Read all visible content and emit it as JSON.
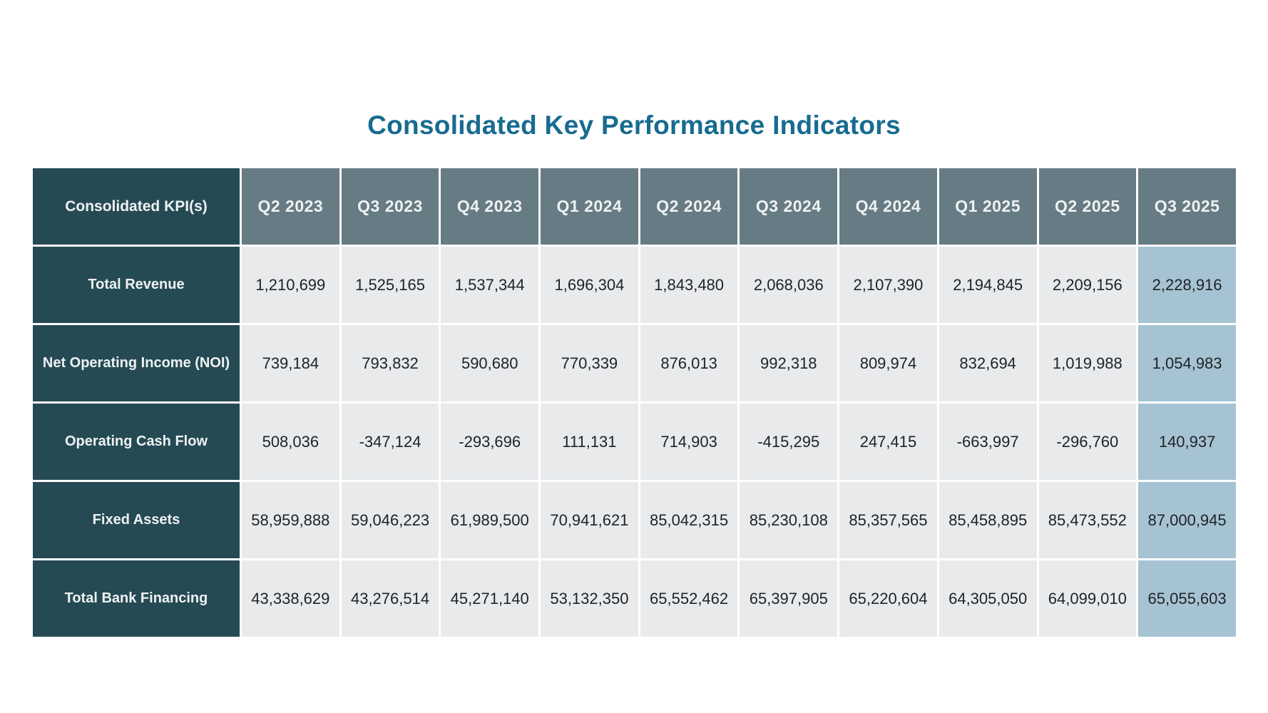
{
  "title": "Consolidated Key Performance Indicators",
  "colors": {
    "title": "#176b90",
    "header_dark": "#264a54",
    "header_slate": "#667b83",
    "cell_bg": "#e8eaec",
    "highlight_bg": "#a6c3d3",
    "header_text": "#eef2f3",
    "cell_text": "#202427",
    "page_bg": "#ffffff"
  },
  "chart_data": {
    "type": "table",
    "title": "Consolidated Key Performance Indicators",
    "corner_label": "Consolidated KPI(s)",
    "columns": [
      "Q2 2023",
      "Q3 2023",
      "Q4 2023",
      "Q1 2024",
      "Q2 2024",
      "Q3 2024",
      "Q4 2024",
      "Q1 2025",
      "Q2 2025",
      "Q3 2025"
    ],
    "highlighted_column": "Q3 2025",
    "rows": [
      {
        "label": "Total Revenue",
        "values": [
          "1,210,699",
          "1,525,165",
          "1,537,344",
          "1,696,304",
          "1,843,480",
          "2,068,036",
          "2,107,390",
          "2,194,845",
          "2,209,156",
          "2,228,916"
        ]
      },
      {
        "label": "Net Operating Income (NOI)",
        "values": [
          "739,184",
          "793,832",
          "590,680",
          "770,339",
          "876,013",
          "992,318",
          "809,974",
          "832,694",
          "1,019,988",
          "1,054,983"
        ]
      },
      {
        "label": "Operating Cash Flow",
        "values": [
          "508,036",
          "-347,124",
          "-293,696",
          "111,131",
          "714,903",
          "-415,295",
          "247,415",
          "-663,997",
          "-296,760",
          "140,937"
        ]
      },
      {
        "label": "Fixed Assets",
        "values": [
          "58,959,888",
          "59,046,223",
          "61,989,500",
          "70,941,621",
          "85,042,315",
          "85,230,108",
          "85,357,565",
          "85,458,895",
          "85,473,552",
          "87,000,945"
        ]
      },
      {
        "label": "Total Bank Financing",
        "values": [
          "43,338,629",
          "43,276,514",
          "45,271,140",
          "53,132,350",
          "65,552,462",
          "65,397,905",
          "65,220,604",
          "64,305,050",
          "64,099,010",
          "65,055,603"
        ]
      }
    ]
  }
}
